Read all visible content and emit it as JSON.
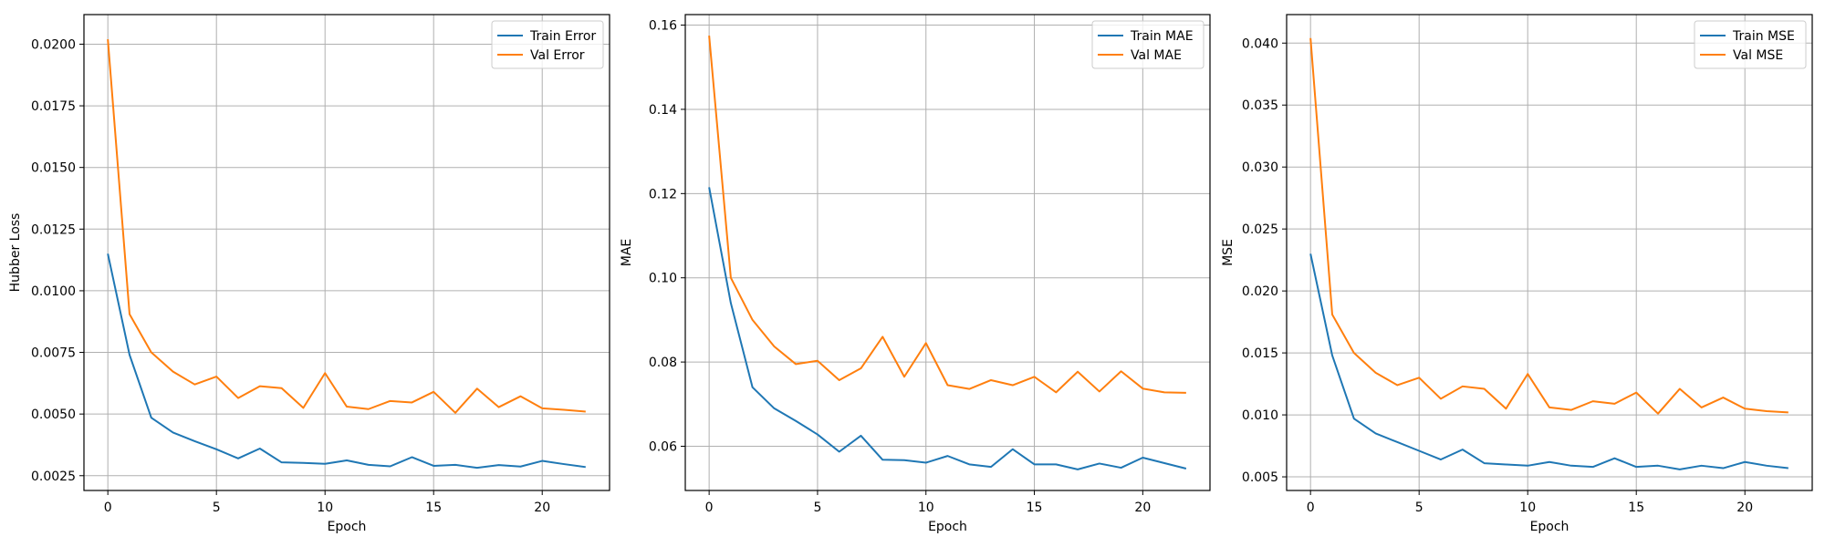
{
  "colors": {
    "train": "#1f77b4",
    "val": "#ff7f0e",
    "grid": "#b0b0b0",
    "frame": "#000000"
  },
  "chart_data": [
    {
      "type": "line",
      "xlabel": "Epoch",
      "ylabel": "Hubber Loss",
      "xlim": [
        -1.1,
        23.1
      ],
      "ylim": [
        0.0019,
        0.0212
      ],
      "xticks": [
        0,
        5,
        10,
        15,
        20
      ],
      "xtick_labels": [
        "0",
        "5",
        "10",
        "15",
        "20"
      ],
      "yticks": [
        0.0025,
        0.005,
        0.0075,
        0.01,
        0.0125,
        0.015,
        0.0175,
        0.02
      ],
      "ytick_labels": [
        "0.0025",
        "0.0050",
        "0.0075",
        "0.0100",
        "0.0125",
        "0.0150",
        "0.0175",
        "0.0200"
      ],
      "grid": true,
      "legend": "top-right",
      "x": [
        0,
        1,
        2,
        3,
        4,
        5,
        6,
        7,
        8,
        9,
        10,
        11,
        12,
        13,
        14,
        15,
        16,
        17,
        18,
        19,
        20,
        21,
        22
      ],
      "series": [
        {
          "name": "Train Error",
          "color": "#1f77b4",
          "values": [
            0.0115,
            0.0074,
            0.00485,
            0.00425,
            0.0039,
            0.00357,
            0.0032,
            0.0036,
            0.00304,
            0.00302,
            0.00298,
            0.00312,
            0.00294,
            0.00288,
            0.00325,
            0.0029,
            0.00294,
            0.00282,
            0.00293,
            0.00287,
            0.0031,
            0.00297,
            0.00285
          ]
        },
        {
          "name": "Val Error",
          "color": "#ff7f0e",
          "values": [
            0.0202,
            0.00905,
            0.0075,
            0.00672,
            0.0062,
            0.00652,
            0.00565,
            0.00613,
            0.00605,
            0.00525,
            0.00666,
            0.0053,
            0.0052,
            0.00553,
            0.00547,
            0.0059,
            0.00505,
            0.00603,
            0.00528,
            0.00572,
            0.00523,
            0.00517,
            0.0051
          ]
        }
      ]
    },
    {
      "type": "line",
      "xlabel": "Epoch",
      "ylabel": "MAE",
      "xlim": [
        -1.1,
        23.1
      ],
      "ylim": [
        0.0495,
        0.1625
      ],
      "xticks": [
        0,
        5,
        10,
        15,
        20
      ],
      "xtick_labels": [
        "0",
        "5",
        "10",
        "15",
        "20"
      ],
      "yticks": [
        0.06,
        0.08,
        0.1,
        0.12,
        0.14,
        0.16
      ],
      "ytick_labels": [
        "0.06",
        "0.08",
        "0.10",
        "0.12",
        "0.14",
        "0.16"
      ],
      "grid": true,
      "legend": "top-right",
      "x": [
        0,
        1,
        2,
        3,
        4,
        5,
        6,
        7,
        8,
        9,
        10,
        11,
        12,
        13,
        14,
        15,
        16,
        17,
        18,
        19,
        20,
        21,
        22
      ],
      "series": [
        {
          "name": "Train MAE",
          "color": "#1f77b4",
          "values": [
            0.1215,
            0.094,
            0.074,
            0.069,
            0.066,
            0.0628,
            0.0587,
            0.0625,
            0.0568,
            0.0567,
            0.0561,
            0.0577,
            0.0557,
            0.0551,
            0.0593,
            0.0557,
            0.0557,
            0.0545,
            0.0559,
            0.0549,
            0.0573,
            0.056,
            0.0547
          ]
        },
        {
          "name": "Val MAE",
          "color": "#ff7f0e",
          "values": [
            0.1575,
            0.1,
            0.09,
            0.0837,
            0.0795,
            0.0803,
            0.0757,
            0.0785,
            0.086,
            0.0765,
            0.0845,
            0.0745,
            0.0736,
            0.0757,
            0.0745,
            0.0765,
            0.0728,
            0.0777,
            0.073,
            0.0778,
            0.0737,
            0.0728,
            0.0727
          ]
        }
      ]
    },
    {
      "type": "line",
      "xlabel": "Epoch",
      "ylabel": "MSE",
      "xlim": [
        -1.1,
        23.1
      ],
      "ylim": [
        0.0039,
        0.0423
      ],
      "xticks": [
        0,
        5,
        10,
        15,
        20
      ],
      "xtick_labels": [
        "0",
        "5",
        "10",
        "15",
        "20"
      ],
      "yticks": [
        0.005,
        0.01,
        0.015,
        0.02,
        0.025,
        0.03,
        0.035,
        0.04
      ],
      "ytick_labels": [
        "0.005",
        "0.010",
        "0.015",
        "0.020",
        "0.025",
        "0.030",
        "0.035",
        "0.040"
      ],
      "grid": true,
      "legend": "top-right",
      "x": [
        0,
        1,
        2,
        3,
        4,
        5,
        6,
        7,
        8,
        9,
        10,
        11,
        12,
        13,
        14,
        15,
        16,
        17,
        18,
        19,
        20,
        21,
        22
      ],
      "series": [
        {
          "name": "Train MSE",
          "color": "#1f77b4",
          "values": [
            0.023,
            0.0148,
            0.0097,
            0.0085,
            0.0078,
            0.0071,
            0.0064,
            0.0072,
            0.0061,
            0.006,
            0.0059,
            0.0062,
            0.0059,
            0.0058,
            0.0065,
            0.0058,
            0.0059,
            0.0056,
            0.0059,
            0.0057,
            0.0062,
            0.0059,
            0.0057
          ]
        },
        {
          "name": "Val MSE",
          "color": "#ff7f0e",
          "values": [
            0.0404,
            0.0181,
            0.015,
            0.0134,
            0.0124,
            0.013,
            0.0113,
            0.0123,
            0.0121,
            0.0105,
            0.0133,
            0.0106,
            0.0104,
            0.0111,
            0.0109,
            0.0118,
            0.0101,
            0.0121,
            0.0106,
            0.0114,
            0.0105,
            0.0103,
            0.0102
          ]
        }
      ]
    }
  ]
}
